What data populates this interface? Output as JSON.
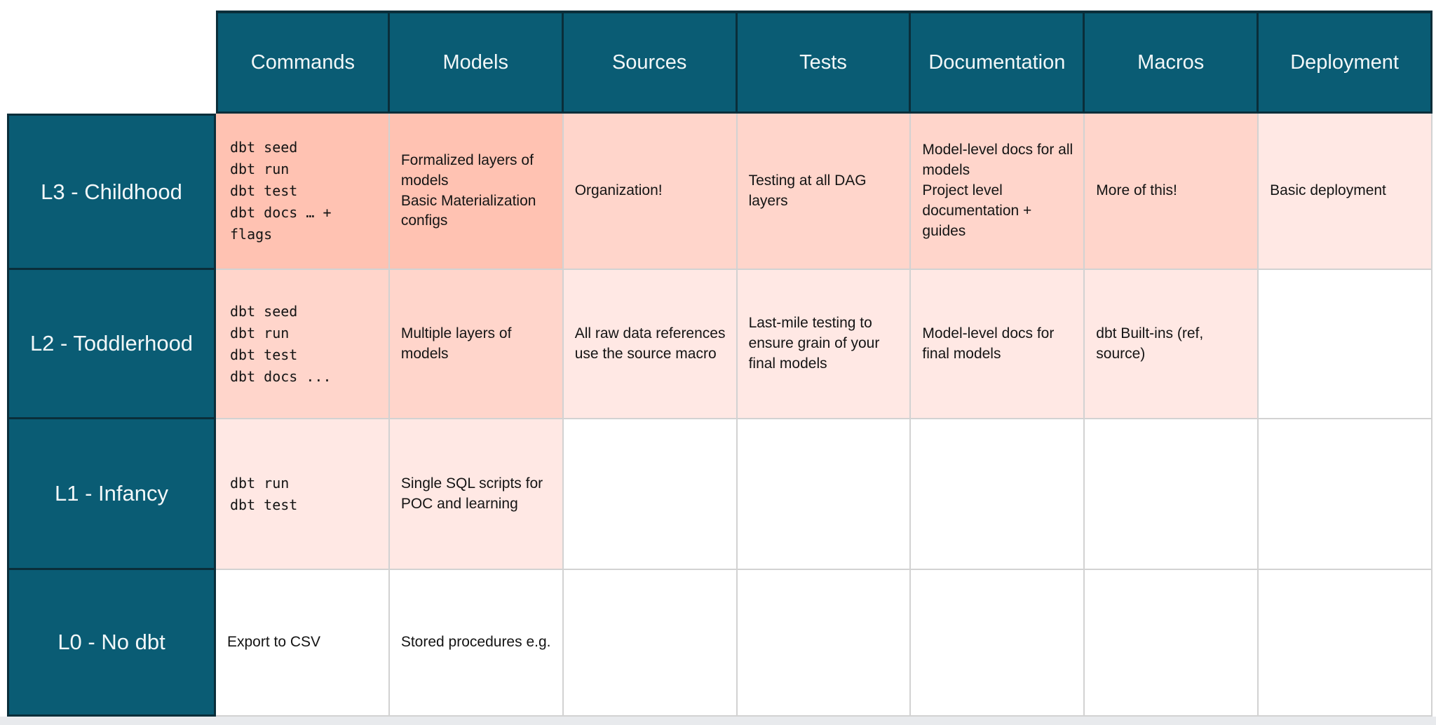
{
  "palette": {
    "header_teal": "#0A5C74",
    "header_border_dark": "#0A2E3A",
    "cell_shade_strong": "#FFC2B2",
    "cell_shade_medium": "#FFD5CB",
    "cell_shade_light": "#FFE8E4",
    "gridline_gray": "#D2D2D2",
    "bottom_strip_gray": "#E8EAED",
    "header_text": "#F2F7F8",
    "cell_text": "#141414"
  },
  "table": {
    "columns": [
      "Commands",
      "Models",
      "Sources",
      "Tests",
      "Documentation",
      "Macros",
      "Deployment"
    ],
    "rows": [
      {
        "label": "L3 - Childhood",
        "cells": [
          {
            "text": "dbt seed\ndbt run\ndbt test\ndbt docs … + flags"
          },
          {
            "text": "Formalized layers of models\nBasic Materialization configs"
          },
          {
            "text": "Organization!"
          },
          {
            "text": "Testing at all DAG layers"
          },
          {
            "text": "Model-level docs for all models\nProject level documentation + guides"
          },
          {
            "text": "More of this!"
          },
          {
            "text": "Basic deployment"
          }
        ]
      },
      {
        "label": "L2 - Toddlerhood",
        "cells": [
          {
            "text": "dbt seed\ndbt run\ndbt test\ndbt docs ..."
          },
          {
            "text": "Multiple layers of models"
          },
          {
            "text": "All raw data references use the source macro"
          },
          {
            "text": "Last-mile testing to ensure grain of your final models"
          },
          {
            "text": "Model-level docs for final models"
          },
          {
            "text": "dbt Built-ins (ref, source)"
          },
          {
            "text": ""
          }
        ]
      },
      {
        "label": "L1 - Infancy",
        "cells": [
          {
            "text": "dbt run\ndbt test"
          },
          {
            "text": "Single SQL scripts for POC and learning"
          },
          {
            "text": ""
          },
          {
            "text": ""
          },
          {
            "text": ""
          },
          {
            "text": ""
          },
          {
            "text": ""
          }
        ]
      },
      {
        "label": "L0 - No dbt",
        "cells": [
          {
            "text": "Export to CSV"
          },
          {
            "text": "Stored procedures e.g."
          },
          {
            "text": ""
          },
          {
            "text": ""
          },
          {
            "text": ""
          },
          {
            "text": ""
          },
          {
            "text": ""
          }
        ]
      }
    ]
  }
}
